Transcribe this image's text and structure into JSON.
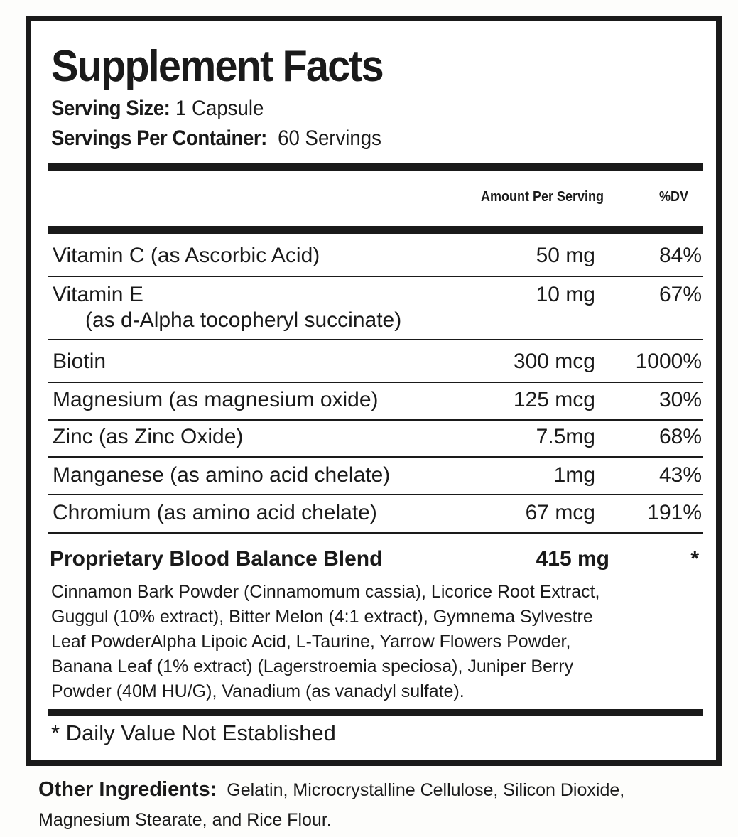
{
  "title": "Supplement Facts",
  "serving_size": {
    "label": "Serving Size:",
    "value": "1 Capsule"
  },
  "servings_per_container": {
    "label": "Servings Per Container:",
    "value": "60 Servings"
  },
  "columns": {
    "amount": "Amount Per Serving",
    "dv": "%DV"
  },
  "nutrients": [
    {
      "name": "Vitamin C (as Ascorbic Acid)",
      "amount": "50 mg",
      "dv": "84%"
    },
    {
      "name": "Vitamin E",
      "sub": "(as d-Alpha tocopheryl succinate)",
      "amount": "10 mg",
      "dv": "67%"
    },
    {
      "name": "Biotin",
      "amount": "300 mcg",
      "dv": "1000%"
    },
    {
      "name": "Magnesium (as magnesium oxide)",
      "amount": "125 mcg",
      "dv": "30%"
    },
    {
      "name": "Zinc (as Zinc Oxide)",
      "amount": "7.5mg",
      "dv": "68%"
    },
    {
      "name": "Manganese (as amino acid chelate)",
      "amount": "1mg",
      "dv": "43%"
    },
    {
      "name": "Chromium (as amino acid chelate)",
      "amount": "67 mcg",
      "dv": "191%"
    }
  ],
  "blend": {
    "name": "Proprietary Blood Balance Blend",
    "amount": "415 mg",
    "dv": "*",
    "lines": [
      "Cinnamon Bark Powder (Cinnamomum cassia), Licorice Root Extract,",
      "Guggul (10% extract), Bitter Melon (4:1 extract), Gymnema Sylvestre",
      "Leaf PowderAlpha Lipoic Acid, L-Taurine, Yarrow Flowers Powder,",
      "Banana Leaf (1% extract) (Lagerstroemia speciosa), Juniper Berry",
      "Powder (40M HU/G), Vanadium (as vanadyl sulfate)."
    ]
  },
  "footnote": "* Daily Value Not Established",
  "other_ingredients": {
    "label": "Other Ingredients:",
    "line1": "Gelatin, Microcrystalline Cellulose, Silicon Dioxide,",
    "line2": "Magnesium Stearate, and Rice Flour."
  }
}
